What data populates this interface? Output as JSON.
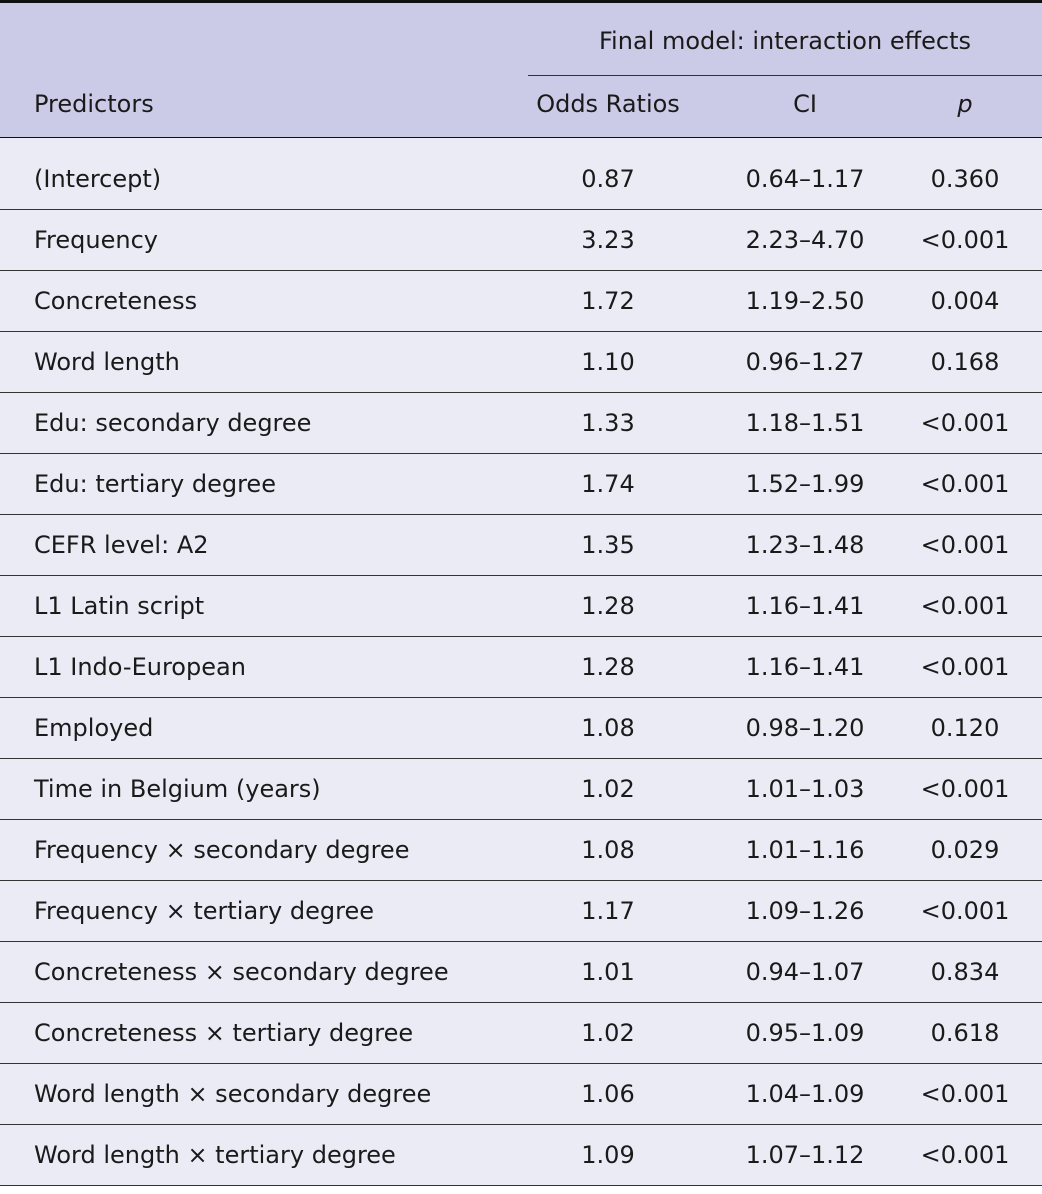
{
  "table": {
    "group_header": "Final model: interaction effects",
    "columns": [
      "Predictors",
      "Odds Ratios",
      "CI",
      "p"
    ],
    "rows": [
      [
        "(Intercept)",
        "0.87",
        "0.64–1.17",
        "0.360"
      ],
      [
        "Frequency",
        "3.23",
        "2.23–4.70",
        "<0.001"
      ],
      [
        "Concreteness",
        "1.72",
        "1.19–2.50",
        "0.004"
      ],
      [
        "Word length",
        "1.10",
        "0.96–1.27",
        "0.168"
      ],
      [
        "Edu: secondary degree",
        "1.33",
        "1.18–1.51",
        "<0.001"
      ],
      [
        "Edu: tertiary degree",
        "1.74",
        "1.52–1.99",
        "<0.001"
      ],
      [
        "CEFR level: A2",
        "1.35",
        "1.23–1.48",
        "<0.001"
      ],
      [
        "L1 Latin script",
        "1.28",
        "1.16–1.41",
        "<0.001"
      ],
      [
        "L1 Indo-European",
        "1.28",
        "1.16–1.41",
        "<0.001"
      ],
      [
        "Employed",
        "1.08",
        "0.98–1.20",
        "0.120"
      ],
      [
        "Time in Belgium (years)",
        "1.02",
        "1.01–1.03",
        "<0.001"
      ],
      [
        "Frequency × secondary degree",
        "1.08",
        "1.01–1.16",
        "0.029"
      ],
      [
        "Frequency × tertiary degree",
        "1.17",
        "1.09–1.26",
        "<0.001"
      ],
      [
        "Concreteness × secondary degree",
        "1.01",
        "0.94–1.07",
        "0.834"
      ],
      [
        "Concreteness × tertiary degree",
        "1.02",
        "0.95–1.09",
        "0.618"
      ],
      [
        "Word length × secondary degree",
        "1.06",
        "1.04–1.09",
        "<0.001"
      ],
      [
        "Word length × tertiary degree",
        "1.09",
        "1.07–1.12",
        "<0.001"
      ]
    ]
  }
}
